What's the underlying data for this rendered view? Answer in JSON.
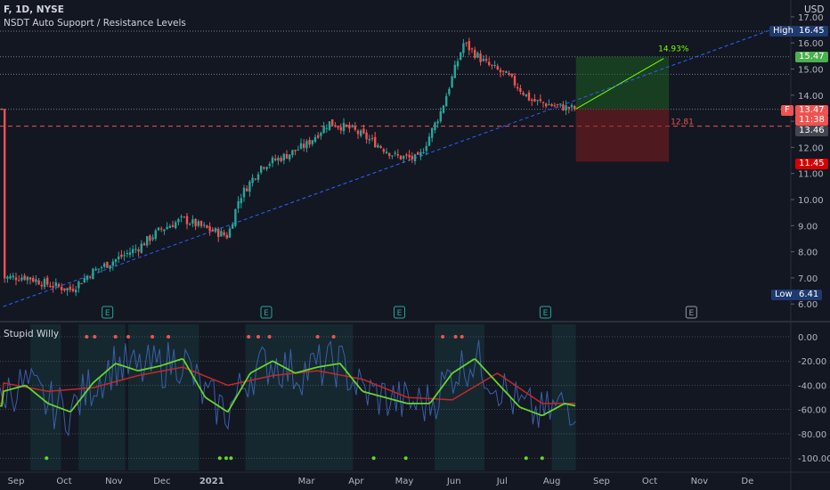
{
  "header": {
    "symbol_line": "F, 1D, NYSE",
    "indicator_name": "NSDT Auto Supoprt / Resistance Levels",
    "currency": "USD"
  },
  "lower_pane": {
    "indicator_name": "Stupid Willy"
  },
  "price_axis": {
    "ticks": [
      "17.00",
      "16.00",
      "15.00",
      "14.00",
      "13.00",
      "12.00",
      "11.00",
      "10.00",
      "9.00",
      "8.00",
      "7.00",
      "6.00"
    ],
    "tag_high_label": "High",
    "tag_high_value": "16.45",
    "tag_target": "15.47",
    "tag_symbol": "F",
    "tag_last": "13.47",
    "tag_countdown": "11:38",
    "tag_level": "13.46",
    "tag_stop": "11.45",
    "tag_low_label": "Low",
    "tag_low_value": "6.41"
  },
  "osc_axis": {
    "ticks": [
      "0.00",
      "-20.00",
      "-40.00",
      "-60.00",
      "-80.00",
      "-100.00"
    ]
  },
  "time_axis": {
    "labels": [
      "Sep",
      "Oct",
      "Nov",
      "Dec",
      "2021",
      "Mar",
      "Apr",
      "May",
      "Jun",
      "Jul",
      "Aug",
      "Sep",
      "Oct",
      "Nov",
      "De"
    ]
  },
  "annotations": {
    "position_percent": "14.93%",
    "entry_price_label": "12.81",
    "earnings_marker": "E"
  },
  "colors": {
    "background": "#131722",
    "up_candle": "#26a69a",
    "down_candle": "#ef5350",
    "trendline": "#2962ff",
    "fast_line": "#66d42e",
    "slow_line": "#c62828",
    "raw_line": "#3a5fa8",
    "target_zone": "#1b5e20",
    "stop_zone": "#7f1d1d"
  },
  "chart_data": {
    "type": "candlestick",
    "symbol": "F",
    "timeframe": "1D",
    "exchange": "NYSE",
    "price_range": [
      5.75,
      17.4
    ],
    "close_path": [
      [
        "2020-08-24",
        7.0
      ],
      [
        "2020-09-07",
        7.05
      ],
      [
        "2020-09-21",
        6.75
      ],
      [
        "2020-10-05",
        6.55
      ],
      [
        "2020-10-19",
        7.25
      ],
      [
        "2020-11-02",
        7.7
      ],
      [
        "2020-11-16",
        8.15
      ],
      [
        "2020-11-30",
        8.85
      ],
      [
        "2020-12-14",
        9.25
      ],
      [
        "2020-12-28",
        8.9
      ],
      [
        "2021-01-11",
        8.6
      ],
      [
        "2021-01-18",
        10.05
      ],
      [
        "2021-02-01",
        11.3
      ],
      [
        "2021-02-15",
        11.65
      ],
      [
        "2021-03-01",
        12.1
      ],
      [
        "2021-03-15",
        12.95
      ],
      [
        "2021-03-29",
        12.7
      ],
      [
        "2021-04-12",
        12.2
      ],
      [
        "2021-04-26",
        11.65
      ],
      [
        "2021-05-10",
        11.55
      ],
      [
        "2021-05-24",
        13.4
      ],
      [
        "2021-06-07",
        16.0
      ],
      [
        "2021-06-21",
        15.2
      ],
      [
        "2021-07-05",
        14.7
      ],
      [
        "2021-07-19",
        13.8
      ],
      [
        "2021-08-02",
        13.6
      ],
      [
        "2021-08-16",
        13.47
      ]
    ],
    "trendline": {
      "from": [
        "2020-08-24",
        5.9
      ],
      "to": [
        "2021-12-20",
        16.6
      ]
    },
    "horizontal_levels": [
      16.45,
      15.47,
      14.8,
      13.46,
      12.81
    ],
    "long_position": {
      "entry": 13.47,
      "target": 15.47,
      "stop": 11.45,
      "percent": "14.93%"
    },
    "oscillator": {
      "range": [
        -100,
        0
      ],
      "fast_path": [
        [
          "2020-08-24",
          -45
        ],
        [
          "2020-09-07",
          -40
        ],
        [
          "2020-09-21",
          -55
        ],
        [
          "2020-10-05",
          -62
        ],
        [
          "2020-10-19",
          -38
        ],
        [
          "2020-11-02",
          -22
        ],
        [
          "2020-11-16",
          -28
        ],
        [
          "2020-11-30",
          -24
        ],
        [
          "2020-12-14",
          -18
        ],
        [
          "2020-12-28",
          -50
        ],
        [
          "2021-01-11",
          -62
        ],
        [
          "2021-01-25",
          -30
        ],
        [
          "2021-02-08",
          -20
        ],
        [
          "2021-02-22",
          -30
        ],
        [
          "2021-03-08",
          -25
        ],
        [
          "2021-03-22",
          -22
        ],
        [
          "2021-04-05",
          -45
        ],
        [
          "2021-04-19",
          -50
        ],
        [
          "2021-05-03",
          -55
        ],
        [
          "2021-05-17",
          -55
        ],
        [
          "2021-05-31",
          -30
        ],
        [
          "2021-06-14",
          -18
        ],
        [
          "2021-06-28",
          -38
        ],
        [
          "2021-07-12",
          -58
        ],
        [
          "2021-07-26",
          -65
        ],
        [
          "2021-08-09",
          -55
        ],
        [
          "2021-08-16",
          -57
        ]
      ],
      "slow_path": [
        [
          "2020-08-24",
          -38
        ],
        [
          "2020-09-21",
          -45
        ],
        [
          "2020-10-19",
          -42
        ],
        [
          "2020-11-16",
          -32
        ],
        [
          "2020-12-14",
          -25
        ],
        [
          "2021-01-11",
          -40
        ],
        [
          "2021-02-08",
          -32
        ],
        [
          "2021-03-08",
          -28
        ],
        [
          "2021-04-05",
          -35
        ],
        [
          "2021-05-03",
          -50
        ],
        [
          "2021-05-31",
          -52
        ],
        [
          "2021-06-28",
          -30
        ],
        [
          "2021-07-26",
          -55
        ],
        [
          "2021-08-16",
          -55
        ]
      ]
    }
  }
}
